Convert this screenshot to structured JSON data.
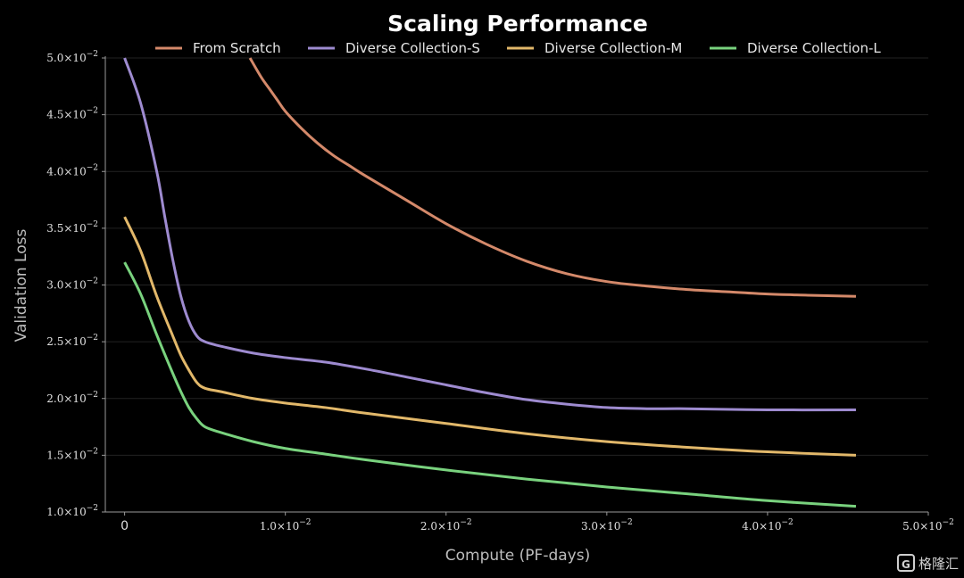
{
  "chart_data": {
    "type": "line",
    "title": "Scaling Performance",
    "xlabel": "Compute (PF-days)",
    "ylabel": "Validation Loss",
    "xlim": [
      -0.0012,
      0.05
    ],
    "ylim": [
      0.01,
      0.05
    ],
    "x_ticks": [
      {
        "value": 0,
        "mant": "0",
        "exp": ""
      },
      {
        "value": 0.01,
        "mant": "1.0×10",
        "exp": "−2"
      },
      {
        "value": 0.02,
        "mant": "2.0×10",
        "exp": "−2"
      },
      {
        "value": 0.03,
        "mant": "3.0×10",
        "exp": "−2"
      },
      {
        "value": 0.04,
        "mant": "4.0×10",
        "exp": "−2"
      },
      {
        "value": 0.05,
        "mant": "5.0×10",
        "exp": "−2"
      }
    ],
    "y_ticks": [
      {
        "value": 0.01,
        "mant": "1.0×10",
        "exp": "−2"
      },
      {
        "value": 0.015,
        "mant": "1.5×10",
        "exp": "−2"
      },
      {
        "value": 0.02,
        "mant": "2.0×10",
        "exp": "−2"
      },
      {
        "value": 0.025,
        "mant": "2.5×10",
        "exp": "−2"
      },
      {
        "value": 0.03,
        "mant": "3.0×10",
        "exp": "−2"
      },
      {
        "value": 0.035,
        "mant": "3.5×10",
        "exp": "−2"
      },
      {
        "value": 0.04,
        "mant": "4.0×10",
        "exp": "−2"
      },
      {
        "value": 0.045,
        "mant": "4.5×10",
        "exp": "−2"
      },
      {
        "value": 0.05,
        "mant": "5.0×10",
        "exp": "−2"
      }
    ],
    "grid": "horizontal",
    "legend_position": "top",
    "series": [
      {
        "name": "From Scratch",
        "color": "#d4896a",
        "points": [
          [
            0.0078,
            0.05
          ],
          [
            0.0085,
            0.0483
          ],
          [
            0.009,
            0.0473
          ],
          [
            0.0095,
            0.0463
          ],
          [
            0.01,
            0.0453
          ],
          [
            0.011,
            0.0438
          ],
          [
            0.012,
            0.0425
          ],
          [
            0.013,
            0.0414
          ],
          [
            0.014,
            0.0405
          ],
          [
            0.015,
            0.0396
          ],
          [
            0.0175,
            0.0375
          ],
          [
            0.02,
            0.0354
          ],
          [
            0.0225,
            0.0336
          ],
          [
            0.025,
            0.0321
          ],
          [
            0.0275,
            0.031
          ],
          [
            0.03,
            0.0303
          ],
          [
            0.0325,
            0.0299
          ],
          [
            0.035,
            0.0296
          ],
          [
            0.0375,
            0.0294
          ],
          [
            0.04,
            0.0292
          ],
          [
            0.0425,
            0.0291
          ],
          [
            0.0455,
            0.029
          ]
        ]
      },
      {
        "name": "Diverse Collection-S",
        "color": "#9e8bd0",
        "points": [
          [
            0,
            0.05
          ],
          [
            0.001,
            0.046
          ],
          [
            0.002,
            0.04
          ],
          [
            0.0025,
            0.036
          ],
          [
            0.003,
            0.0322
          ],
          [
            0.0035,
            0.029
          ],
          [
            0.004,
            0.0268
          ],
          [
            0.0045,
            0.0255
          ],
          [
            0.005,
            0.025
          ],
          [
            0.006,
            0.0246
          ],
          [
            0.008,
            0.024
          ],
          [
            0.01,
            0.0236
          ],
          [
            0.0125,
            0.0232
          ],
          [
            0.015,
            0.0226
          ],
          [
            0.0175,
            0.0219
          ],
          [
            0.02,
            0.0212
          ],
          [
            0.0225,
            0.0205
          ],
          [
            0.025,
            0.0199
          ],
          [
            0.0275,
            0.0195
          ],
          [
            0.03,
            0.0192
          ],
          [
            0.0325,
            0.0191
          ],
          [
            0.035,
            0.0191
          ],
          [
            0.04,
            0.019
          ],
          [
            0.0455,
            0.019
          ]
        ]
      },
      {
        "name": "Diverse Collection-M",
        "color": "#e2b86a",
        "points": [
          [
            0,
            0.036
          ],
          [
            0.001,
            0.033
          ],
          [
            0.002,
            0.029
          ],
          [
            0.003,
            0.0255
          ],
          [
            0.0035,
            0.0238
          ],
          [
            0.004,
            0.0225
          ],
          [
            0.0045,
            0.0214
          ],
          [
            0.005,
            0.0209
          ],
          [
            0.006,
            0.0206
          ],
          [
            0.008,
            0.02
          ],
          [
            0.01,
            0.0196
          ],
          [
            0.0125,
            0.0192
          ],
          [
            0.015,
            0.0187
          ],
          [
            0.02,
            0.0178
          ],
          [
            0.025,
            0.0169
          ],
          [
            0.03,
            0.0162
          ],
          [
            0.035,
            0.0157
          ],
          [
            0.04,
            0.0153
          ],
          [
            0.0455,
            0.015
          ]
        ]
      },
      {
        "name": "Diverse Collection-L",
        "color": "#79d27e",
        "points": [
          [
            0,
            0.032
          ],
          [
            0.001,
            0.0292
          ],
          [
            0.002,
            0.0256
          ],
          [
            0.003,
            0.0222
          ],
          [
            0.0035,
            0.0206
          ],
          [
            0.004,
            0.0192
          ],
          [
            0.0045,
            0.0182
          ],
          [
            0.005,
            0.0175
          ],
          [
            0.006,
            0.017
          ],
          [
            0.008,
            0.0162
          ],
          [
            0.01,
            0.0156
          ],
          [
            0.0125,
            0.0151
          ],
          [
            0.015,
            0.0146
          ],
          [
            0.02,
            0.0137
          ],
          [
            0.025,
            0.0129
          ],
          [
            0.03,
            0.0122
          ],
          [
            0.035,
            0.0116
          ],
          [
            0.04,
            0.011
          ],
          [
            0.0455,
            0.0105
          ]
        ]
      }
    ]
  },
  "watermark": {
    "text": "格隆汇"
  }
}
